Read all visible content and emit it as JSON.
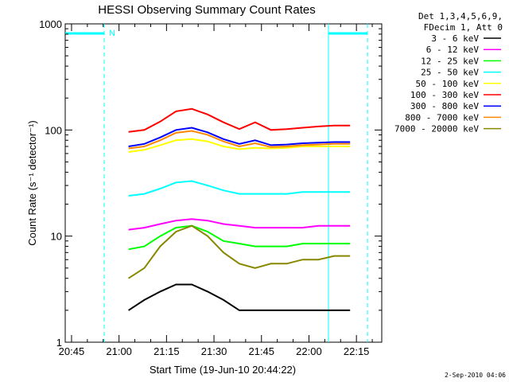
{
  "chart_data": {
    "type": "line",
    "title": "HESSI Observing Summary Count Rates",
    "xlabel": "Start Time (19-Jun-10 20:44:22)",
    "ylabel": "Count Rate (s⁻¹ detector⁻¹)",
    "yscale": "log",
    "ylim": [
      1,
      1000
    ],
    "xlim_minutes": [
      0,
      100
    ],
    "x_tick_labels": [
      "20:45",
      "21:00",
      "21:15",
      "21:30",
      "21:45",
      "22:00",
      "22:15"
    ],
    "y_tick_labels": [
      "1",
      "10",
      "100",
      "1000"
    ],
    "legend_header": [
      "Det 1,3,4,5,6,9,",
      "FDecim 1, Att 0"
    ],
    "legend_position": "top-right",
    "annotation_marker": "N",
    "timestamp": "2-Sep-2010 04:06",
    "series": [
      {
        "name": "3 - 6 keV",
        "color": "#000000",
        "x": [
          20,
          25,
          30,
          35,
          40,
          45,
          50,
          55,
          60,
          65,
          70,
          75,
          80,
          85,
          90
        ],
        "values": [
          2,
          2.5,
          3,
          3.5,
          3.5,
          3,
          2.5,
          2,
          2,
          2,
          2,
          2,
          2,
          2,
          2
        ]
      },
      {
        "name": "6 - 12 keV",
        "color": "#ff00ff",
        "x": [
          20,
          25,
          30,
          35,
          40,
          45,
          50,
          55,
          60,
          65,
          70,
          75,
          80,
          85,
          90
        ],
        "values": [
          11.5,
          12,
          13,
          14,
          14.5,
          14,
          13,
          12.5,
          12,
          12,
          12,
          12,
          12.5,
          12.5,
          12.5
        ]
      },
      {
        "name": "12 - 25 keV",
        "color": "#00ff00",
        "x": [
          20,
          25,
          30,
          35,
          40,
          45,
          50,
          55,
          60,
          65,
          70,
          75,
          80,
          85,
          90
        ],
        "values": [
          7.5,
          8,
          10,
          12,
          12.5,
          11,
          9,
          8.5,
          8,
          8,
          8,
          8.5,
          8.5,
          8.5,
          8.5
        ]
      },
      {
        "name": "25 - 50 keV",
        "color": "#00ffff",
        "x": [
          20,
          25,
          30,
          35,
          40,
          45,
          50,
          55,
          60,
          65,
          70,
          75,
          80,
          85,
          90
        ],
        "values": [
          24,
          25,
          28,
          32,
          33,
          30,
          27,
          25,
          25,
          25,
          25,
          26,
          26,
          26,
          26
        ]
      },
      {
        "name": "50 - 100 keV",
        "color": "#ffff00",
        "x": [
          20,
          25,
          30,
          35,
          40,
          45,
          50,
          55,
          60,
          65,
          70,
          75,
          80,
          85,
          90
        ],
        "values": [
          62,
          65,
          72,
          80,
          82,
          78,
          70,
          66,
          68,
          67,
          68,
          70,
          70,
          70,
          70
        ]
      },
      {
        "name": "100 - 300 keV",
        "color": "#ff0000",
        "x": [
          20,
          25,
          30,
          35,
          40,
          45,
          50,
          55,
          60,
          65,
          70,
          75,
          80,
          85,
          90
        ],
        "values": [
          96,
          100,
          120,
          150,
          158,
          140,
          118,
          102,
          118,
          100,
          102,
          105,
          108,
          110,
          110
        ]
      },
      {
        "name": "300 - 800 keV",
        "color": "#0000ff",
        "x": [
          20,
          25,
          30,
          35,
          40,
          45,
          50,
          55,
          60,
          65,
          70,
          75,
          80,
          85,
          90
        ],
        "values": [
          70,
          74,
          85,
          100,
          105,
          95,
          82,
          74,
          80,
          72,
          73,
          75,
          76,
          77,
          77
        ]
      },
      {
        "name": "800 - 7000 keV",
        "color": "#ff8800",
        "x": [
          20,
          25,
          30,
          35,
          40,
          45,
          50,
          55,
          60,
          65,
          70,
          75,
          80,
          85,
          90
        ],
        "values": [
          67,
          70,
          80,
          94,
          98,
          90,
          78,
          70,
          75,
          69,
          70,
          72,
          73,
          74,
          74
        ]
      },
      {
        "name": "7000 - 20000 keV",
        "color": "#888800",
        "x": [
          20,
          25,
          30,
          35,
          40,
          45,
          50,
          55,
          60,
          65,
          70,
          75,
          80,
          85,
          90
        ],
        "values": [
          4,
          5,
          8,
          11,
          12.5,
          10,
          7,
          5.5,
          5,
          5.5,
          5.5,
          6,
          6,
          6.5,
          6.5
        ]
      }
    ]
  }
}
